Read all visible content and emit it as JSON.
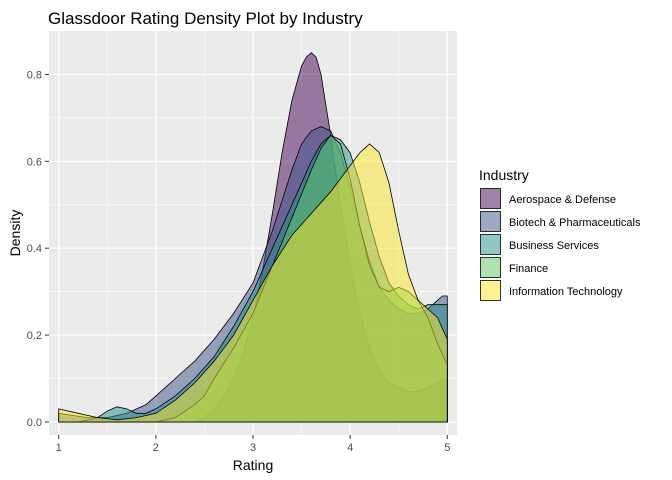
{
  "chart_data": {
    "type": "area",
    "title": "Glassdoor Rating Density Plot by Industry",
    "xlabel": "Rating",
    "ylabel": "Density",
    "xlim": [
      0.9,
      5.1
    ],
    "ylim": [
      -0.03,
      0.9
    ],
    "xticks": [
      1,
      2,
      3,
      4,
      5
    ],
    "yticks": [
      0.0,
      0.2,
      0.4,
      0.6,
      0.8
    ],
    "ytick_labels": [
      "0.0",
      "0.2",
      "0.4",
      "0.6",
      "0.8"
    ],
    "grid": true,
    "legend": {
      "title": "Industry",
      "position": "right"
    },
    "series": [
      {
        "name": "Aerospace & Defense",
        "color": "#440154",
        "x": [
          1.0,
          2.4,
          2.5,
          2.6,
          2.7,
          2.8,
          2.9,
          3.0,
          3.1,
          3.2,
          3.3,
          3.4,
          3.5,
          3.55,
          3.6,
          3.65,
          3.7,
          3.8,
          3.9,
          4.0,
          4.1,
          4.2,
          4.3,
          4.4,
          4.5,
          4.6,
          4.7,
          4.8,
          4.9,
          5.0
        ],
        "y": [
          0.0,
          0.0,
          0.01,
          0.03,
          0.06,
          0.1,
          0.16,
          0.24,
          0.35,
          0.48,
          0.62,
          0.74,
          0.82,
          0.84,
          0.85,
          0.84,
          0.8,
          0.66,
          0.5,
          0.36,
          0.25,
          0.17,
          0.12,
          0.09,
          0.08,
          0.07,
          0.07,
          0.08,
          0.09,
          0.1
        ]
      },
      {
        "name": "Biotech & Pharmaceuticals",
        "color": "#3b528b",
        "x": [
          1.0,
          1.3,
          1.5,
          1.7,
          1.9,
          2.0,
          2.2,
          2.4,
          2.6,
          2.8,
          3.0,
          3.2,
          3.4,
          3.5,
          3.6,
          3.7,
          3.8,
          3.9,
          4.0,
          4.1,
          4.2,
          4.3,
          4.4,
          4.5,
          4.6,
          4.7,
          4.8,
          4.9,
          4.95,
          5.0
        ],
        "y": [
          0.02,
          0.01,
          0.01,
          0.02,
          0.04,
          0.06,
          0.1,
          0.14,
          0.19,
          0.25,
          0.32,
          0.44,
          0.58,
          0.64,
          0.67,
          0.68,
          0.67,
          0.62,
          0.54,
          0.45,
          0.37,
          0.31,
          0.28,
          0.26,
          0.25,
          0.25,
          0.26,
          0.28,
          0.29,
          0.29
        ]
      },
      {
        "name": "Business Services",
        "color": "#21908c",
        "x": [
          1.0,
          1.2,
          1.4,
          1.5,
          1.6,
          1.7,
          1.8,
          1.9,
          2.0,
          2.2,
          2.4,
          2.6,
          2.8,
          3.0,
          3.2,
          3.4,
          3.6,
          3.7,
          3.8,
          3.9,
          4.0,
          4.1,
          4.2,
          4.3,
          4.4,
          4.5,
          4.6,
          4.7,
          4.8,
          4.9,
          5.0
        ],
        "y": [
          0.0,
          0.0,
          0.01,
          0.025,
          0.035,
          0.03,
          0.02,
          0.02,
          0.03,
          0.06,
          0.1,
          0.15,
          0.22,
          0.3,
          0.4,
          0.5,
          0.6,
          0.64,
          0.66,
          0.65,
          0.62,
          0.55,
          0.46,
          0.38,
          0.32,
          0.29,
          0.27,
          0.26,
          0.27,
          0.27,
          0.27
        ]
      },
      {
        "name": "Finance",
        "color": "#5dc863",
        "x": [
          1.0,
          1.5,
          2.0,
          2.2,
          2.4,
          2.5,
          2.6,
          2.8,
          3.0,
          3.2,
          3.4,
          3.6,
          3.7,
          3.8,
          3.9,
          4.0,
          4.1,
          4.2,
          4.3,
          4.4,
          4.5,
          4.6,
          4.7,
          4.8,
          4.9,
          5.0
        ],
        "y": [
          0.0,
          0.0,
          0.0,
          0.01,
          0.04,
          0.06,
          0.1,
          0.17,
          0.25,
          0.36,
          0.47,
          0.58,
          0.63,
          0.66,
          0.64,
          0.56,
          0.45,
          0.36,
          0.31,
          0.3,
          0.31,
          0.3,
          0.28,
          0.24,
          0.18,
          0.13
        ]
      },
      {
        "name": "Information Technology",
        "color": "#fde725",
        "x": [
          1.0,
          1.2,
          1.4,
          1.6,
          1.8,
          2.0,
          2.2,
          2.4,
          2.6,
          2.8,
          3.0,
          3.2,
          3.4,
          3.6,
          3.8,
          3.9,
          4.0,
          4.1,
          4.2,
          4.3,
          4.4,
          4.5,
          4.6,
          4.7,
          4.8,
          4.9,
          5.0
        ],
        "y": [
          0.03,
          0.02,
          0.01,
          0.005,
          0.01,
          0.02,
          0.05,
          0.09,
          0.14,
          0.2,
          0.28,
          0.36,
          0.43,
          0.48,
          0.53,
          0.56,
          0.59,
          0.62,
          0.64,
          0.62,
          0.55,
          0.44,
          0.34,
          0.28,
          0.26,
          0.24,
          0.19
        ]
      }
    ]
  }
}
